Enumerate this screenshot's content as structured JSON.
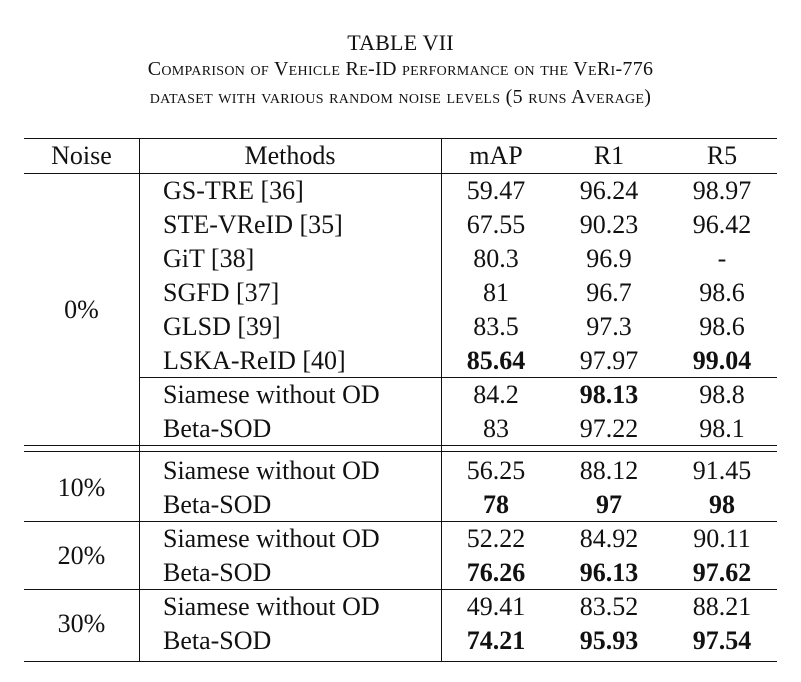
{
  "caption": {
    "title": "TABLE VII",
    "line1": "Comparison of Vehicle Re-ID performance on the VeRi-776",
    "line2": "dataset with various random noise levels (5 runs Average)"
  },
  "table": {
    "headers": [
      "Noise",
      "Methods",
      "mAP",
      "R1",
      "R5"
    ],
    "groups": [
      {
        "noise": "0%",
        "rows": [
          {
            "method": "GS-TRE  [36]",
            "map": "59.47",
            "r1": "96.24",
            "r5": "98.97",
            "bold": []
          },
          {
            "method": "STE-VReID  [35]",
            "map": "67.55",
            "r1": "90.23",
            "r5": "96.42",
            "bold": []
          },
          {
            "method": "GiT  [38]",
            "map": "80.3",
            "r1": "96.9",
            "r5": "-",
            "bold": []
          },
          {
            "method": "SGFD  [37]",
            "map": "81",
            "r1": "96.7",
            "r5": "98.6",
            "bold": []
          },
          {
            "method": "GLSD  [39]",
            "map": "83.5",
            "r1": "97.3",
            "r5": "98.6",
            "bold": []
          },
          {
            "method": "LSKA-ReID [40]",
            "map": "85.64",
            "r1": "97.97",
            "r5": "99.04",
            "bold": [
              "map",
              "r5"
            ]
          },
          {
            "method": "Siamese without OD",
            "map": "84.2",
            "r1": "98.13",
            "r5": "98.8",
            "bold": [
              "r1"
            ]
          },
          {
            "method": "Beta-SOD",
            "map": "83",
            "r1": "97.22",
            "r5": "98.1",
            "bold": []
          }
        ]
      },
      {
        "noise": "10%",
        "rows": [
          {
            "method": "Siamese without OD",
            "map": "56.25",
            "r1": "88.12",
            "r5": "91.45",
            "bold": []
          },
          {
            "method": "Beta-SOD",
            "map": "78",
            "r1": "97",
            "r5": "98",
            "bold": [
              "map",
              "r1",
              "r5"
            ]
          }
        ]
      },
      {
        "noise": "20%",
        "rows": [
          {
            "method": "Siamese without OD",
            "map": "52.22",
            "r1": "84.92",
            "r5": "90.11",
            "bold": []
          },
          {
            "method": "Beta-SOD",
            "map": "76.26",
            "r1": "96.13",
            "r5": "97.62",
            "bold": [
              "map",
              "r1",
              "r5"
            ]
          }
        ]
      },
      {
        "noise": "30%",
        "rows": [
          {
            "method": "Siamese without OD",
            "map": "49.41",
            "r1": "83.52",
            "r5": "88.21",
            "bold": []
          },
          {
            "method": "Beta-SOD",
            "map": "74.21",
            "r1": "95.93",
            "r5": "97.54",
            "bold": [
              "map",
              "r1",
              "r5"
            ]
          }
        ]
      }
    ]
  }
}
